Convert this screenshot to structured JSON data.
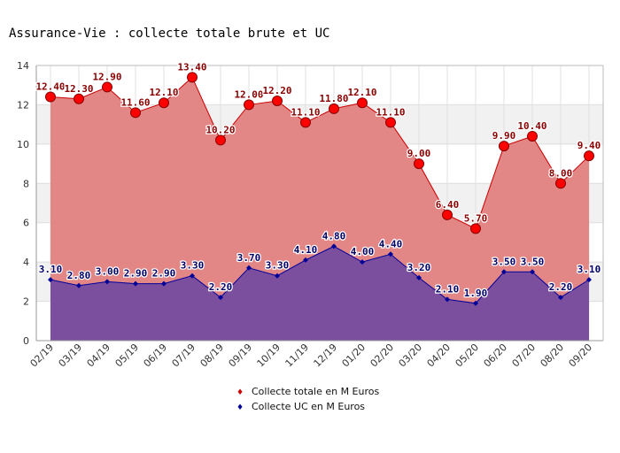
{
  "chart_data": {
    "type": "area",
    "title": "Assurance-Vie : collecte totale brute et UC",
    "xlabel": "",
    "ylabel": "",
    "ylim": [
      0,
      14
    ],
    "yticks": [
      0,
      2,
      4,
      6,
      8,
      10,
      12,
      14
    ],
    "categories": [
      "02/19",
      "03/19",
      "04/19",
      "05/19",
      "06/19",
      "07/19",
      "08/19",
      "09/19",
      "10/19",
      "11/19",
      "12/19",
      "01/20",
      "02/20",
      "03/20",
      "04/20",
      "05/20",
      "06/20",
      "07/20",
      "08/20",
      "09/20"
    ],
    "series": [
      {
        "name": "Collecte totale en M Euros",
        "values": [
          12.4,
          12.3,
          12.9,
          11.6,
          12.1,
          13.4,
          10.2,
          12.0,
          12.2,
          11.1,
          11.8,
          12.1,
          11.1,
          9.0,
          6.4,
          5.7,
          9.9,
          10.4,
          8.0,
          9.4
        ],
        "labels": [
          "12.40",
          "12.30",
          "12.90",
          "11.60",
          "12.10",
          "13.40",
          "10.20",
          "12.00",
          "12.20",
          "11.10",
          "11.80",
          "12.10",
          "11.10",
          "9.00",
          "6.40",
          "5.70",
          "9.90",
          "10.40",
          "8.00",
          "9.40"
        ],
        "color": "#cc0000",
        "fill": "#e08080"
      },
      {
        "name": "Collecte UC en M Euros",
        "values": [
          3.1,
          2.8,
          3.0,
          2.9,
          2.9,
          3.3,
          2.2,
          3.7,
          3.3,
          4.1,
          4.8,
          4.0,
          4.4,
          3.2,
          2.1,
          1.9,
          3.5,
          3.5,
          2.2,
          3.1
        ],
        "labels": [
          "3.10",
          "2.80",
          "3.00",
          "2.90",
          "2.90",
          "3.30",
          "2.20",
          "3.70",
          "3.30",
          "4.10",
          "4.80",
          "4.00",
          "4.40",
          "3.20",
          "2.10",
          "1.90",
          "3.50",
          "3.50",
          "2.20",
          "3.10"
        ],
        "color": "#000099",
        "fill": "#7b4f9e"
      }
    ],
    "legend": [
      {
        "label": "Collecte totale en M Euros",
        "symbol": "♦",
        "color": "#cc0000"
      },
      {
        "label": "Collecte UC en M Euros",
        "symbol": "♦",
        "color": "#000099"
      }
    ],
    "legend_position": "bottom-center",
    "grid": true
  }
}
